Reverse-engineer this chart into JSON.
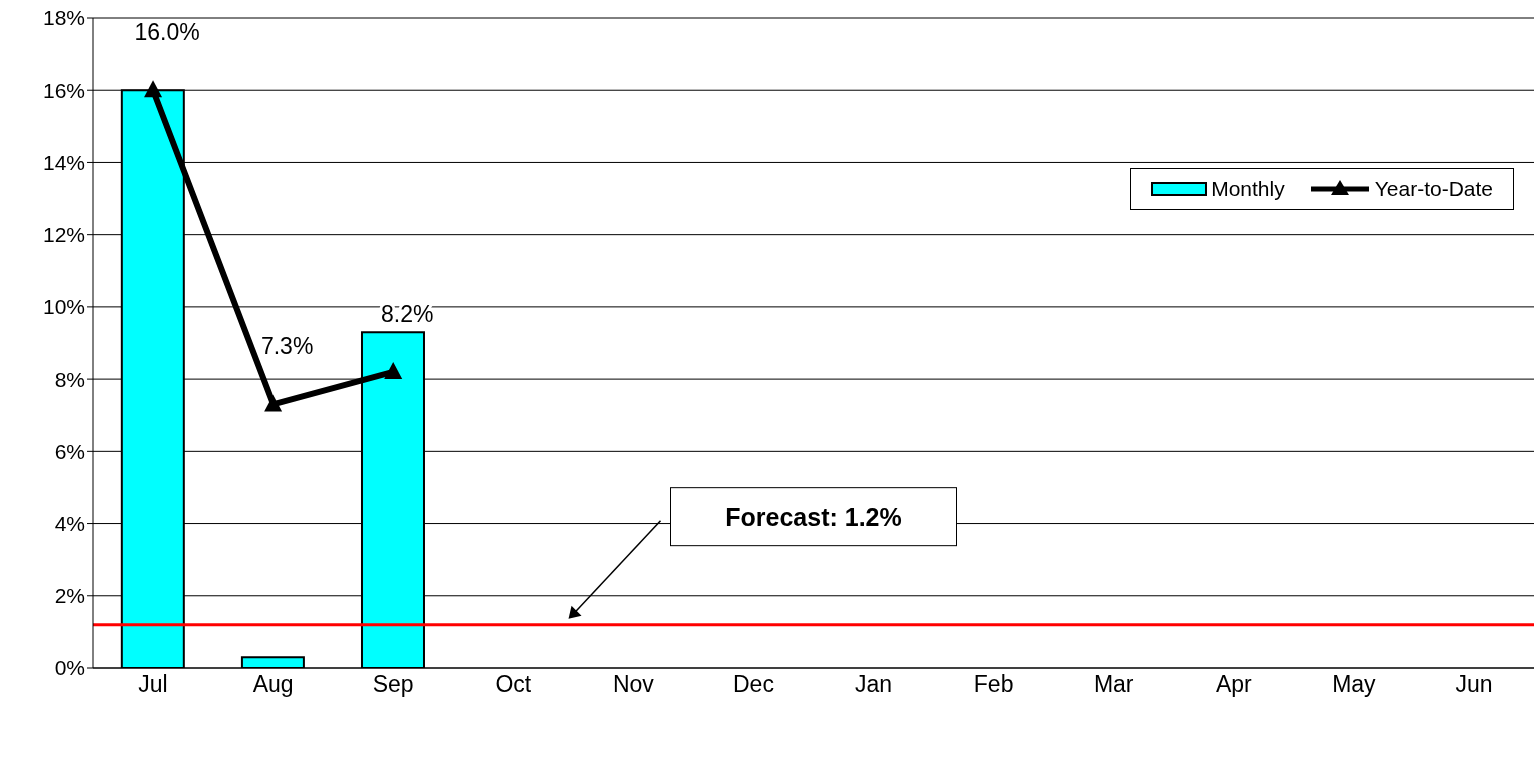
{
  "chart_data": {
    "type": "bar",
    "categories": [
      "Jul",
      "Aug",
      "Sep",
      "Oct",
      "Nov",
      "Dec",
      "Jan",
      "Feb",
      "Mar",
      "Apr",
      "May",
      "Jun"
    ],
    "series": [
      {
        "name": "Monthly",
        "color": "#00ffff",
        "values": [
          16.0,
          0.3,
          9.3,
          null,
          null,
          null,
          null,
          null,
          null,
          null,
          null,
          null
        ]
      },
      {
        "name": "Year-to-Date",
        "type": "line",
        "color": "#000000",
        "marker": "triangle",
        "line_style": "solid",
        "values": [
          16.0,
          7.3,
          8.2,
          null,
          null,
          null,
          null,
          null,
          null,
          null,
          null,
          null
        ],
        "value_labels": [
          "16.0%",
          "7.3%",
          "8.2%",
          null,
          null,
          null,
          null,
          null,
          null,
          null,
          null,
          null
        ]
      }
    ],
    "ylim": [
      0,
      18
    ],
    "yticks": [
      {
        "value": 0,
        "label": "0%"
      },
      {
        "value": 2,
        "label": "2%"
      },
      {
        "value": 4,
        "label": "4%"
      },
      {
        "value": 6,
        "label": "6%"
      },
      {
        "value": 8,
        "label": "8%"
      },
      {
        "value": 10,
        "label": "10%"
      },
      {
        "value": 12,
        "label": "12%"
      },
      {
        "value": 14,
        "label": "14%"
      },
      {
        "value": 16,
        "label": "16%"
      },
      {
        "value": 18,
        "label": "18%"
      }
    ],
    "grid": "y",
    "legend": "top right",
    "annotations": [
      "Forecast: 1.2%"
    ],
    "ref_lines": [
      {
        "axis": "y",
        "value": 1.2,
        "color": "#ff0000",
        "line_style": "solid"
      }
    ]
  }
}
